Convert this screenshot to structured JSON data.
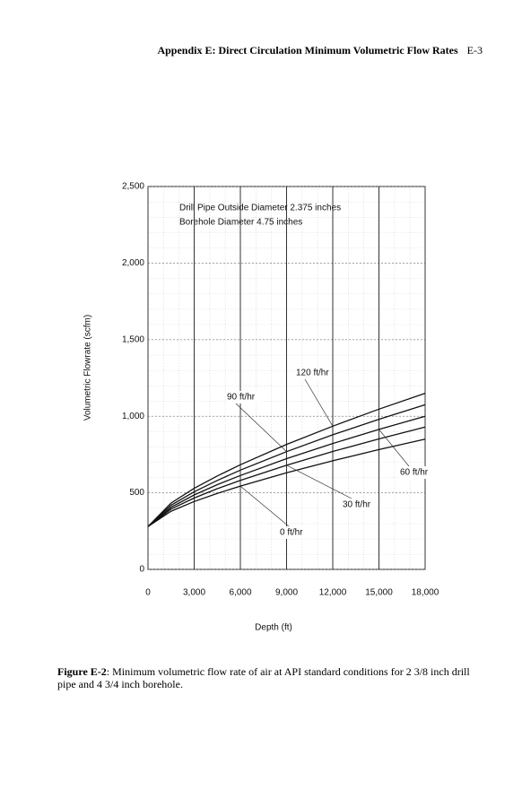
{
  "header": {
    "title": "Appendix E: Direct Circulation Minimum Volumetric Flow Rates",
    "page": "E-3"
  },
  "chart_data": {
    "type": "line",
    "annotations": [
      "Drill Pipe Outside Diameter 2.375 inches",
      "Borehole Diameter 4.75 inches"
    ],
    "x_label": "Depth (ft)",
    "y_label": "Volumetric Flowrate (scfm)",
    "x": [
      0,
      1500,
      3000,
      4500,
      6000,
      9000,
      12000,
      15000,
      18000
    ],
    "series": [
      {
        "name": "0 ft/hr",
        "color": "#111111",
        "values": [
          280,
          380,
          443,
          496,
          544,
          631,
          709,
          782,
          850
        ]
      },
      {
        "name": "30 ft/hr",
        "color": "#111111",
        "values": [
          280,
          394,
          466,
          527,
          581,
          680,
          770,
          852,
          930
        ]
      },
      {
        "name": "60 ft/hr",
        "color": "#111111",
        "values": [
          280,
          406,
          486,
          553,
          613,
          723,
          822,
          914,
          1000
        ]
      },
      {
        "name": "90 ft/hr",
        "color": "#111111",
        "values": [
          280,
          419,
          507,
          581,
          648,
          769,
          879,
          980,
          1075
        ]
      },
      {
        "name": "120 ft/hr",
        "color": "#111111",
        "values": [
          280,
          433,
          529,
          610,
          683,
          816,
          935,
          1046,
          1150
        ]
      }
    ],
    "xlim": [
      0,
      18000
    ],
    "ylim": [
      0,
      2500
    ],
    "xticks": [
      0,
      {
        "value": 3000,
        "label": "3,000"
      },
      {
        "value": 6000,
        "label": "6,000"
      },
      {
        "value": 9000,
        "label": "9,000"
      },
      {
        "value": 12000,
        "label": "12,000"
      },
      {
        "value": 15000,
        "label": "15,000"
      },
      {
        "value": 18000,
        "label": "18,000"
      }
    ],
    "yticks": [
      0,
      500,
      {
        "value": 1000,
        "label": "1,000"
      },
      {
        "value": 1500,
        "label": "1,500"
      },
      {
        "value": 2000,
        "label": "2,000"
      },
      {
        "value": 2500,
        "label": "2,500"
      }
    ],
    "grid": true
  },
  "caption": {
    "label": "Figure E-2",
    "text": ": Minimum volumetric flow rate of air at API standard conditions for 2 3/8 inch drill pipe and 4 3/4 inch borehole."
  }
}
